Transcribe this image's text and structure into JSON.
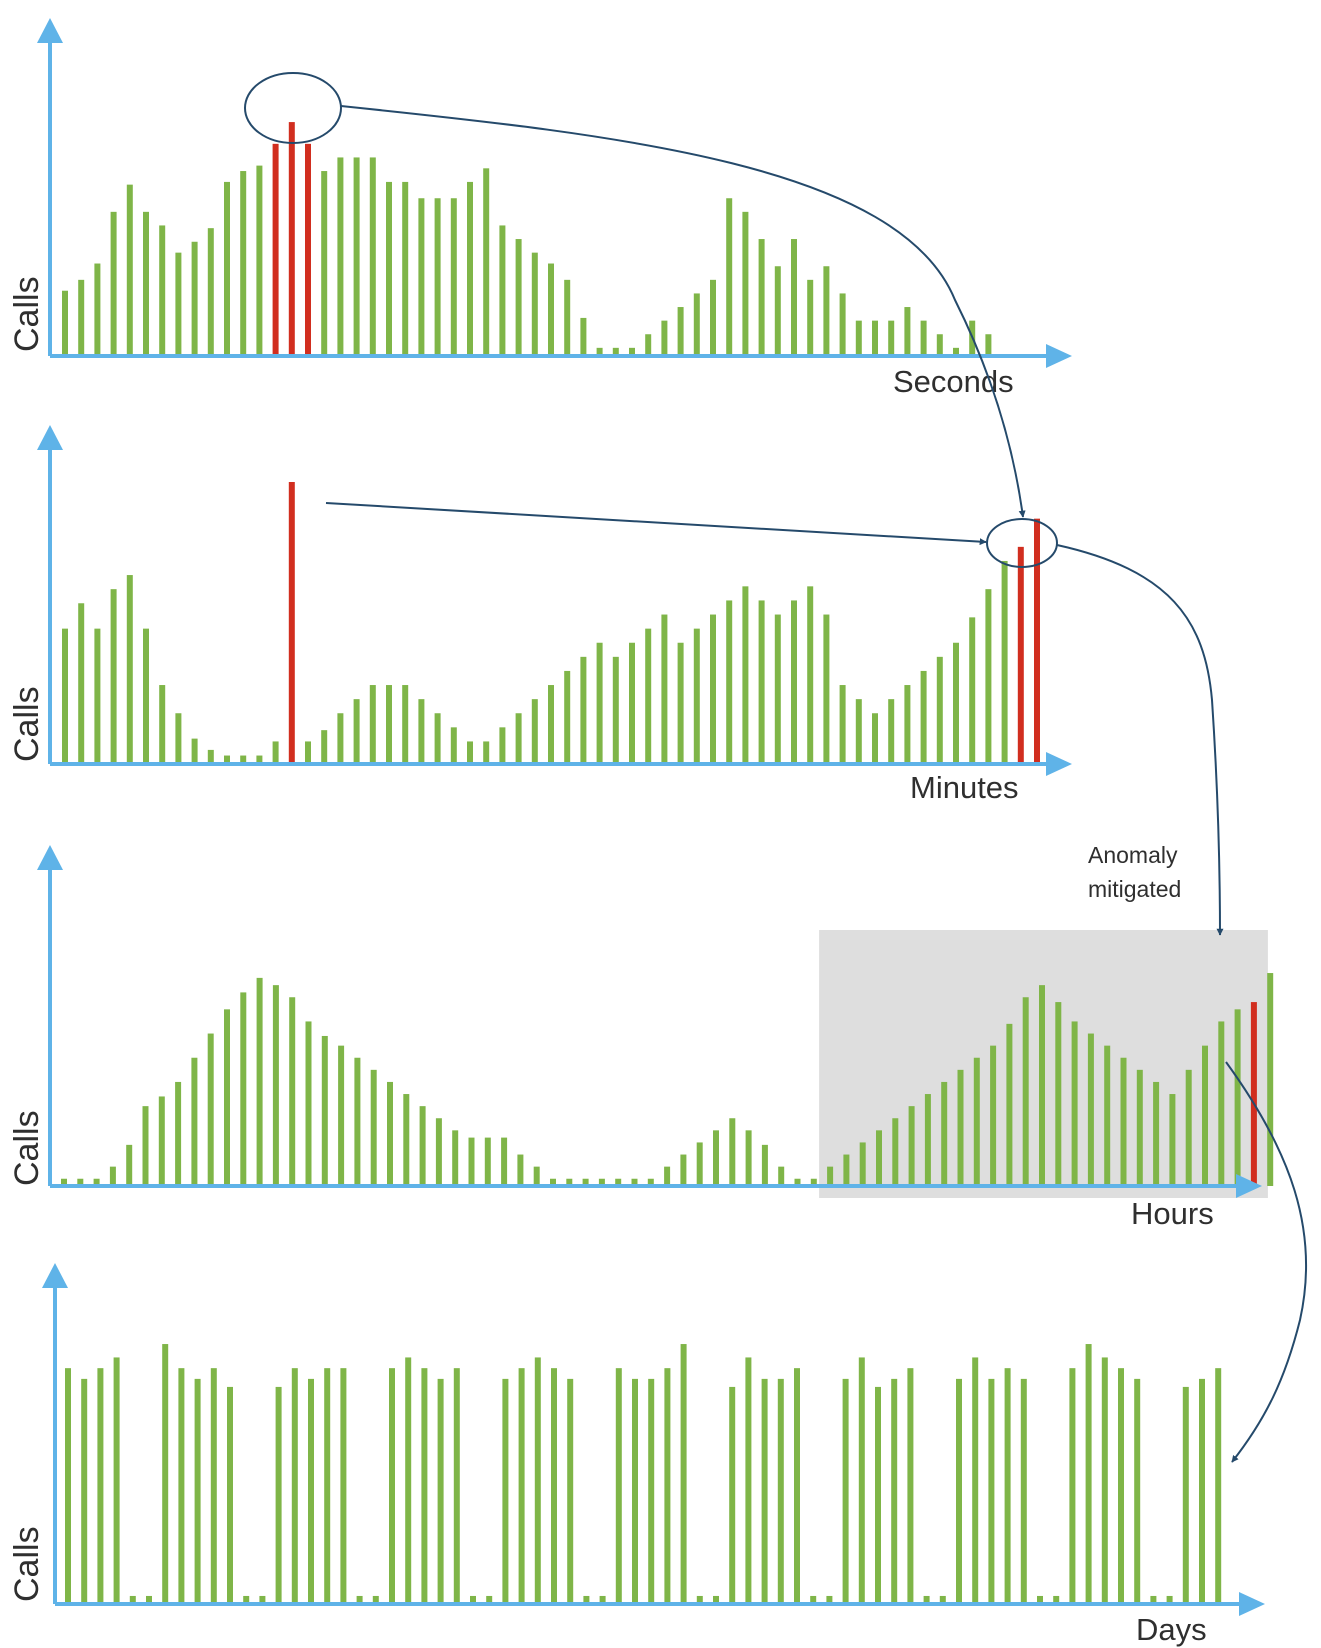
{
  "colors": {
    "normal_bar": "#7fb548",
    "anomaly_bar": "#d12e1f",
    "axis": "#5fb3e8",
    "connector": "#254a6b",
    "highlight_fill": "#dedede",
    "text": "#2f2f2f"
  },
  "annotation": {
    "text_lines": [
      "Anomaly",
      "mitigated"
    ]
  },
  "chart_data": [
    {
      "type": "bar",
      "xlabel": "Seconds",
      "ylabel": "Calls",
      "ylim": [
        0,
        100
      ],
      "values": [
        24,
        28,
        34,
        53,
        63,
        53,
        48,
        38,
        42,
        47,
        64,
        68,
        70,
        78,
        86,
        78,
        68,
        73,
        73,
        73,
        64,
        64,
        58,
        58,
        58,
        64,
        69,
        48,
        43,
        38,
        34,
        28,
        14,
        3,
        3,
        3,
        8,
        13,
        18,
        23,
        28,
        58,
        53,
        43,
        33,
        43,
        28,
        33,
        23,
        13,
        13,
        13,
        18,
        13,
        8,
        3,
        13,
        8
      ],
      "anomalies": [
        13,
        14,
        15
      ]
    },
    {
      "type": "bar",
      "xlabel": "Minutes",
      "ylabel": "Calls",
      "ylim": [
        0,
        100
      ],
      "values": [
        48,
        57,
        48,
        62,
        67,
        48,
        28,
        18,
        9,
        5,
        3,
        3,
        3,
        8,
        100,
        8,
        12,
        18,
        23,
        28,
        28,
        28,
        23,
        18,
        13,
        8,
        8,
        13,
        18,
        23,
        28,
        33,
        38,
        43,
        38,
        43,
        48,
        53,
        43,
        48,
        53,
        58,
        63,
        58,
        53,
        58,
        63,
        53,
        28,
        23,
        18,
        23,
        28,
        33,
        38,
        43,
        52,
        62,
        72,
        77,
        87
      ],
      "anomalies": [
        14,
        59,
        60
      ]
    },
    {
      "type": "bar",
      "xlabel": "Hours",
      "ylabel": "Calls",
      "ylim": [
        0,
        100
      ],
      "values": [
        3,
        3,
        3,
        8,
        17,
        33,
        37,
        43,
        53,
        63,
        73,
        80,
        86,
        83,
        78,
        68,
        62,
        58,
        53,
        48,
        43,
        38,
        33,
        28,
        23,
        20,
        20,
        20,
        13,
        8,
        3,
        3,
        3,
        3,
        3,
        3,
        3,
        8,
        13,
        18,
        23,
        28,
        23,
        17,
        8,
        3,
        3,
        8,
        13,
        18,
        23,
        28,
        33,
        38,
        43,
        48,
        53,
        58,
        67,
        78,
        83,
        76,
        68,
        63,
        58,
        53,
        48,
        43,
        38,
        48,
        58,
        68,
        73,
        76,
        88
      ],
      "anomalies": [
        73
      ],
      "highlight_range": [
        47,
        73
      ]
    },
    {
      "type": "bar",
      "xlabel": "Days",
      "ylabel": "Calls",
      "ylim": [
        0,
        100
      ],
      "values": [
        88,
        84,
        88,
        92,
        3,
        3,
        97,
        88,
        84,
        88,
        81,
        3,
        3,
        81,
        88,
        84,
        88,
        88,
        3,
        3,
        88,
        92,
        88,
        84,
        88,
        3,
        3,
        84,
        88,
        92,
        88,
        84,
        3,
        3,
        88,
        84,
        84,
        88,
        97,
        3,
        3,
        81,
        92,
        84,
        84,
        88,
        3,
        3,
        84,
        92,
        81,
        84,
        88,
        3,
        3,
        84,
        92,
        84,
        88,
        84,
        3,
        3,
        88,
        97,
        92,
        88,
        84,
        3,
        3,
        81,
        84,
        88
      ],
      "anomalies": []
    }
  ]
}
